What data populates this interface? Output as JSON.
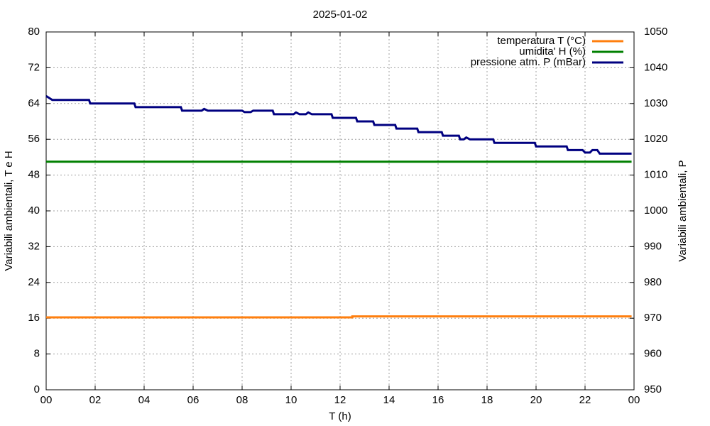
{
  "chart_data": {
    "type": "line",
    "title": "2025-01-02",
    "x_label": "T (h)",
    "y_label": "Variabili ambientali, T e H",
    "y2_label": "Variabili ambientali, P",
    "xlim": [
      0,
      24
    ],
    "xticks": [
      {
        "value": 0,
        "label": "00"
      },
      {
        "value": 2,
        "label": "02"
      },
      {
        "value": 4,
        "label": "04"
      },
      {
        "value": 6,
        "label": "06"
      },
      {
        "value": 8,
        "label": "08"
      },
      10,
      12,
      14,
      16,
      18,
      20,
      22,
      {
        "value": 24,
        "label": "00"
      }
    ],
    "ylim": [
      0,
      80
    ],
    "yticks": [
      0,
      8,
      16,
      24,
      32,
      40,
      48,
      56,
      64,
      72,
      80
    ],
    "y2lim": [
      950,
      1050
    ],
    "y2ticks": [
      950,
      960,
      970,
      980,
      990,
      1000,
      1010,
      1020,
      1030,
      1040,
      1050
    ],
    "grid": true,
    "legend": "top-right",
    "series": [
      {
        "name": "temperatura T (°C)",
        "color": "#ff7f0e",
        "x": [
          0,
          12.5,
          12.5,
          23.9
        ],
        "values": [
          16.2,
          16.2,
          16.4,
          16.4
        ]
      },
      {
        "name": "umidita' H (%)",
        "color": "#008000",
        "x": [
          0,
          23.9
        ],
        "values": [
          51,
          51
        ]
      },
      {
        "name": "pressione atm. P (mBar)",
        "color": "#000080",
        "axis": "y2",
        "x": [
          0,
          0.25,
          1.75,
          1.8,
          3.6,
          3.65,
          5.5,
          5.55,
          6.35,
          6.45,
          6.6,
          8.0,
          8.1,
          8.35,
          8.45,
          9.25,
          9.3,
          10.1,
          10.2,
          10.35,
          10.6,
          10.7,
          10.85,
          11.65,
          11.7,
          12.65,
          12.7,
          13.35,
          13.4,
          14.25,
          14.3,
          15.15,
          15.2,
          16.15,
          16.2,
          16.85,
          16.9,
          17.05,
          17.15,
          17.3,
          18.25,
          18.3,
          19.95,
          20.0,
          21.25,
          21.3,
          21.9,
          22.0,
          22.2,
          22.3,
          22.5,
          22.6,
          23.9
        ],
        "values": [
          1032.1,
          1031,
          1031,
          1030,
          1030,
          1029,
          1029,
          1028,
          1028,
          1028.5,
          1028,
          1028,
          1027.6,
          1027.6,
          1028,
          1028,
          1027,
          1027,
          1027.5,
          1027,
          1027,
          1027.5,
          1027,
          1027,
          1026,
          1026,
          1025,
          1025,
          1024,
          1024,
          1023,
          1023,
          1022,
          1022,
          1021,
          1021,
          1020,
          1020,
          1020.5,
          1020,
          1020,
          1019,
          1019,
          1018,
          1018,
          1017,
          1017,
          1016.3,
          1016.3,
          1017,
          1017,
          1016,
          1016
        ]
      }
    ]
  }
}
